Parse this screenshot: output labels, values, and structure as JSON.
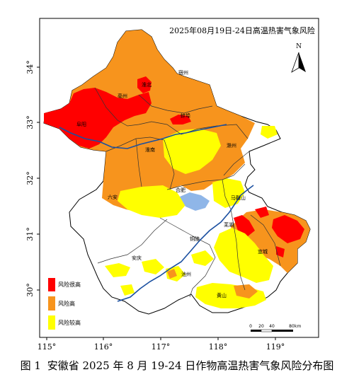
{
  "map": {
    "title": "2025年08月19日-24日高温热害气象风险",
    "north_label": "N",
    "lon_labels": [
      "115°",
      "116°",
      "117°",
      "118°",
      "119°"
    ],
    "lat_labels": [
      "34°",
      "33°",
      "32°",
      "31°",
      "30°"
    ],
    "legend": [
      {
        "label": "风险很高",
        "color": "#ff0000"
      },
      {
        "label": "风险高",
        "color": "#f7941d"
      },
      {
        "label": "风险较高",
        "color": "#ffff00"
      }
    ],
    "scale_bar": {
      "ticks": [
        "0",
        "20",
        "40",
        "80"
      ],
      "unit": "km"
    },
    "cities": [
      {
        "name": "宿州"
      },
      {
        "name": "淮北"
      },
      {
        "name": "阜阳"
      },
      {
        "name": "蚌埠"
      },
      {
        "name": "亳州"
      },
      {
        "name": "淮南"
      },
      {
        "name": "滁州"
      },
      {
        "name": "六安"
      },
      {
        "name": "合肥"
      },
      {
        "name": "马鞍山"
      },
      {
        "name": "芜湖"
      },
      {
        "name": "铜陵"
      },
      {
        "name": "宣城"
      },
      {
        "name": "安庆"
      },
      {
        "name": "池州"
      },
      {
        "name": "黄山"
      }
    ]
  },
  "caption": {
    "figure_no": "图 1",
    "text": "安徽省 2025 年 8 月 19-24 日作物高温热害气象风险分布图"
  }
}
